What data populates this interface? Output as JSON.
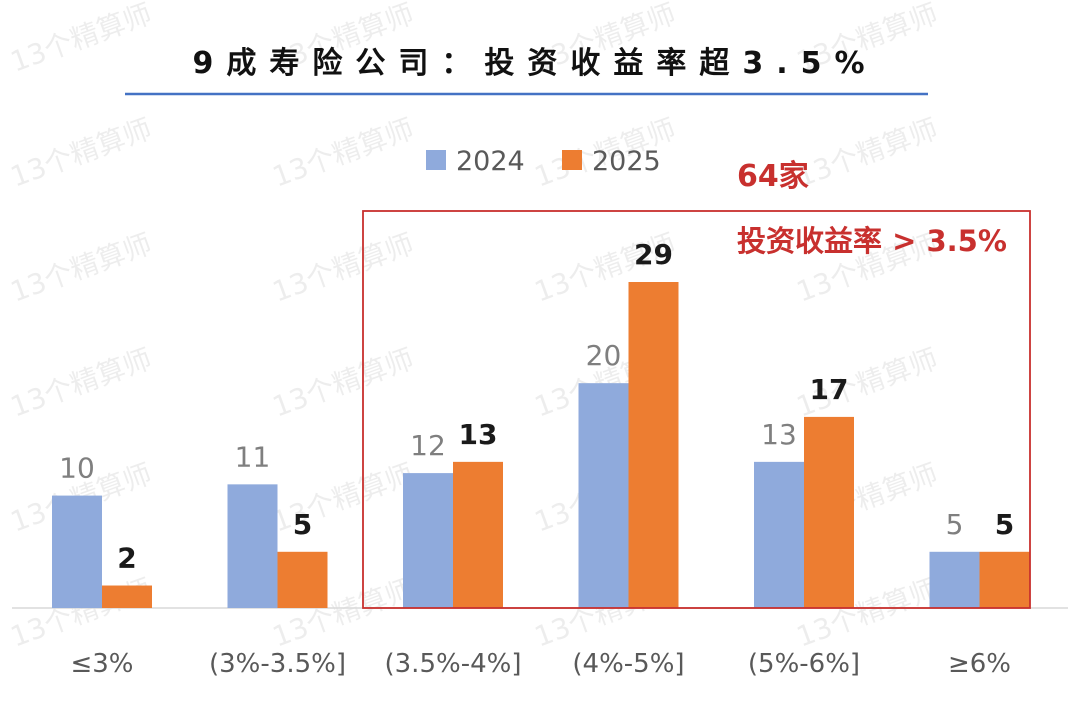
{
  "watermark": "13个精算师",
  "highlight": {
    "count_label": "64家",
    "subtitle": "投资收益率 > 3.5%",
    "color": "#c8302e"
  },
  "colors": {
    "series_2024": "#8faadc",
    "series_2025": "#ed7d31",
    "title_rule": "#4472c4",
    "label_2024": "#7f7f7f",
    "label_2025": "#1a1a1a",
    "category_text": "#595959"
  },
  "chart_data": {
    "type": "bar",
    "title": "9成寿险公司：投资收益率超3.5%",
    "categories": [
      "≤3%",
      "(3%-3.5%]",
      "(3.5%-4%]",
      "(4%-5%]",
      "(5%-6%]",
      "≥6%"
    ],
    "series": [
      {
        "name": "2024",
        "values": [
          10,
          11,
          12,
          20,
          13,
          5
        ]
      },
      {
        "name": "2025",
        "values": [
          2,
          5,
          13,
          29,
          17,
          5
        ]
      }
    ],
    "xlabel": "",
    "ylabel": "",
    "ylim": [
      0,
      30
    ],
    "grid": false,
    "legend": "top-center",
    "highlighted_categories": [
      "(3.5%-4%]",
      "(4%-5%]",
      "(5%-6%]",
      "≥6%"
    ]
  }
}
